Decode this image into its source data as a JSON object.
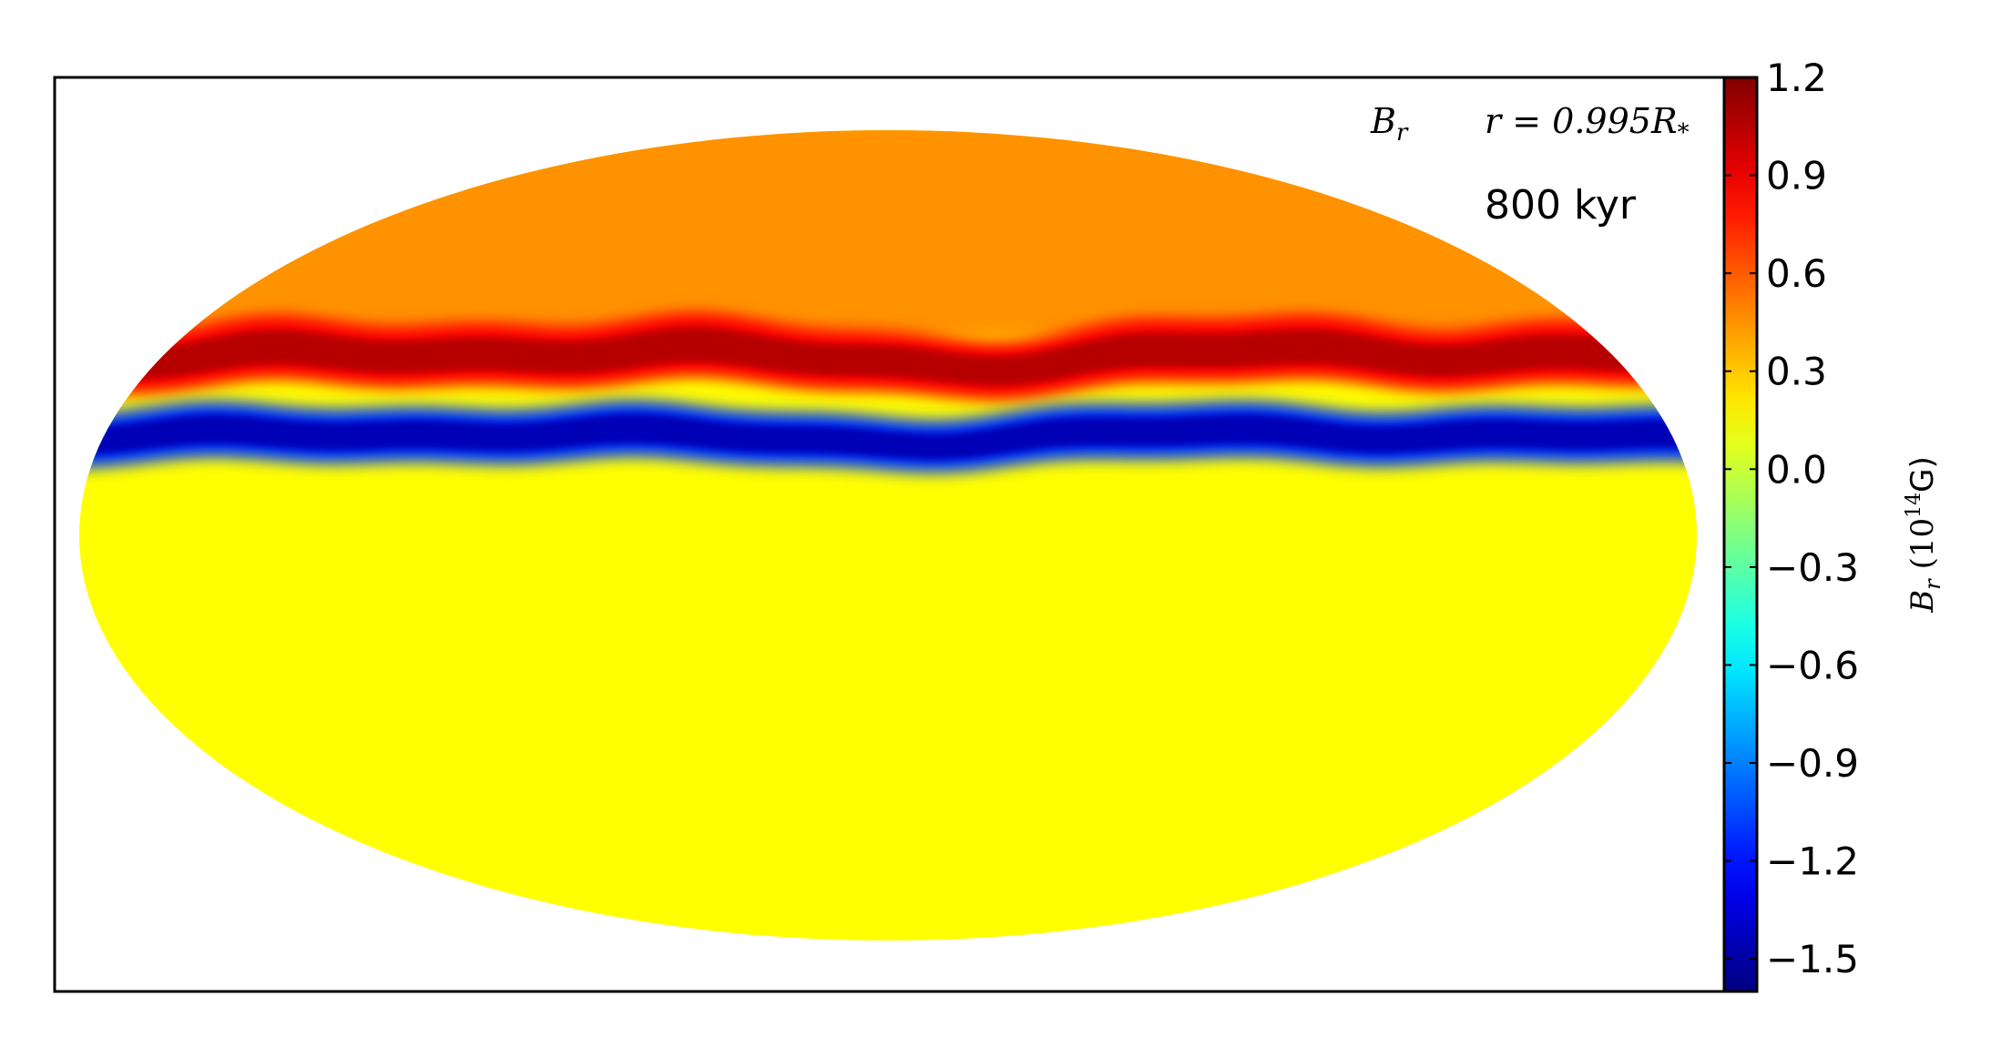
{
  "chart_data": {
    "type": "heatmap",
    "projection": "mollweide",
    "quantity_label": "B_r",
    "radius_label": "r = 0.995R_*",
    "time_label": "800 kyr",
    "colorbar": {
      "label_symbol": "B_r",
      "label_unit_base": "10",
      "label_unit_exp": "14",
      "label_unit_suffix": "G",
      "colormap": "jet",
      "vmin": -1.6,
      "vmax": 1.2,
      "ticks": [
        1.2,
        0.9,
        0.6,
        0.3,
        0.0,
        -0.3,
        -0.6,
        -0.9,
        -1.2,
        -1.5
      ],
      "tick_labels": [
        "1.2",
        "0.9",
        "0.6",
        "0.3",
        "0.0",
        "−0.3",
        "−0.6",
        "−0.9",
        "−1.2",
        "−1.5"
      ]
    },
    "field_description_values": {
      "background": 0.15,
      "northern_cap": 0.45,
      "positive_band_peak": 1.05,
      "negative_band_peak": -1.45,
      "positive_band_latitude_deg": 33,
      "negative_band_latitude_deg": 18
    }
  }
}
